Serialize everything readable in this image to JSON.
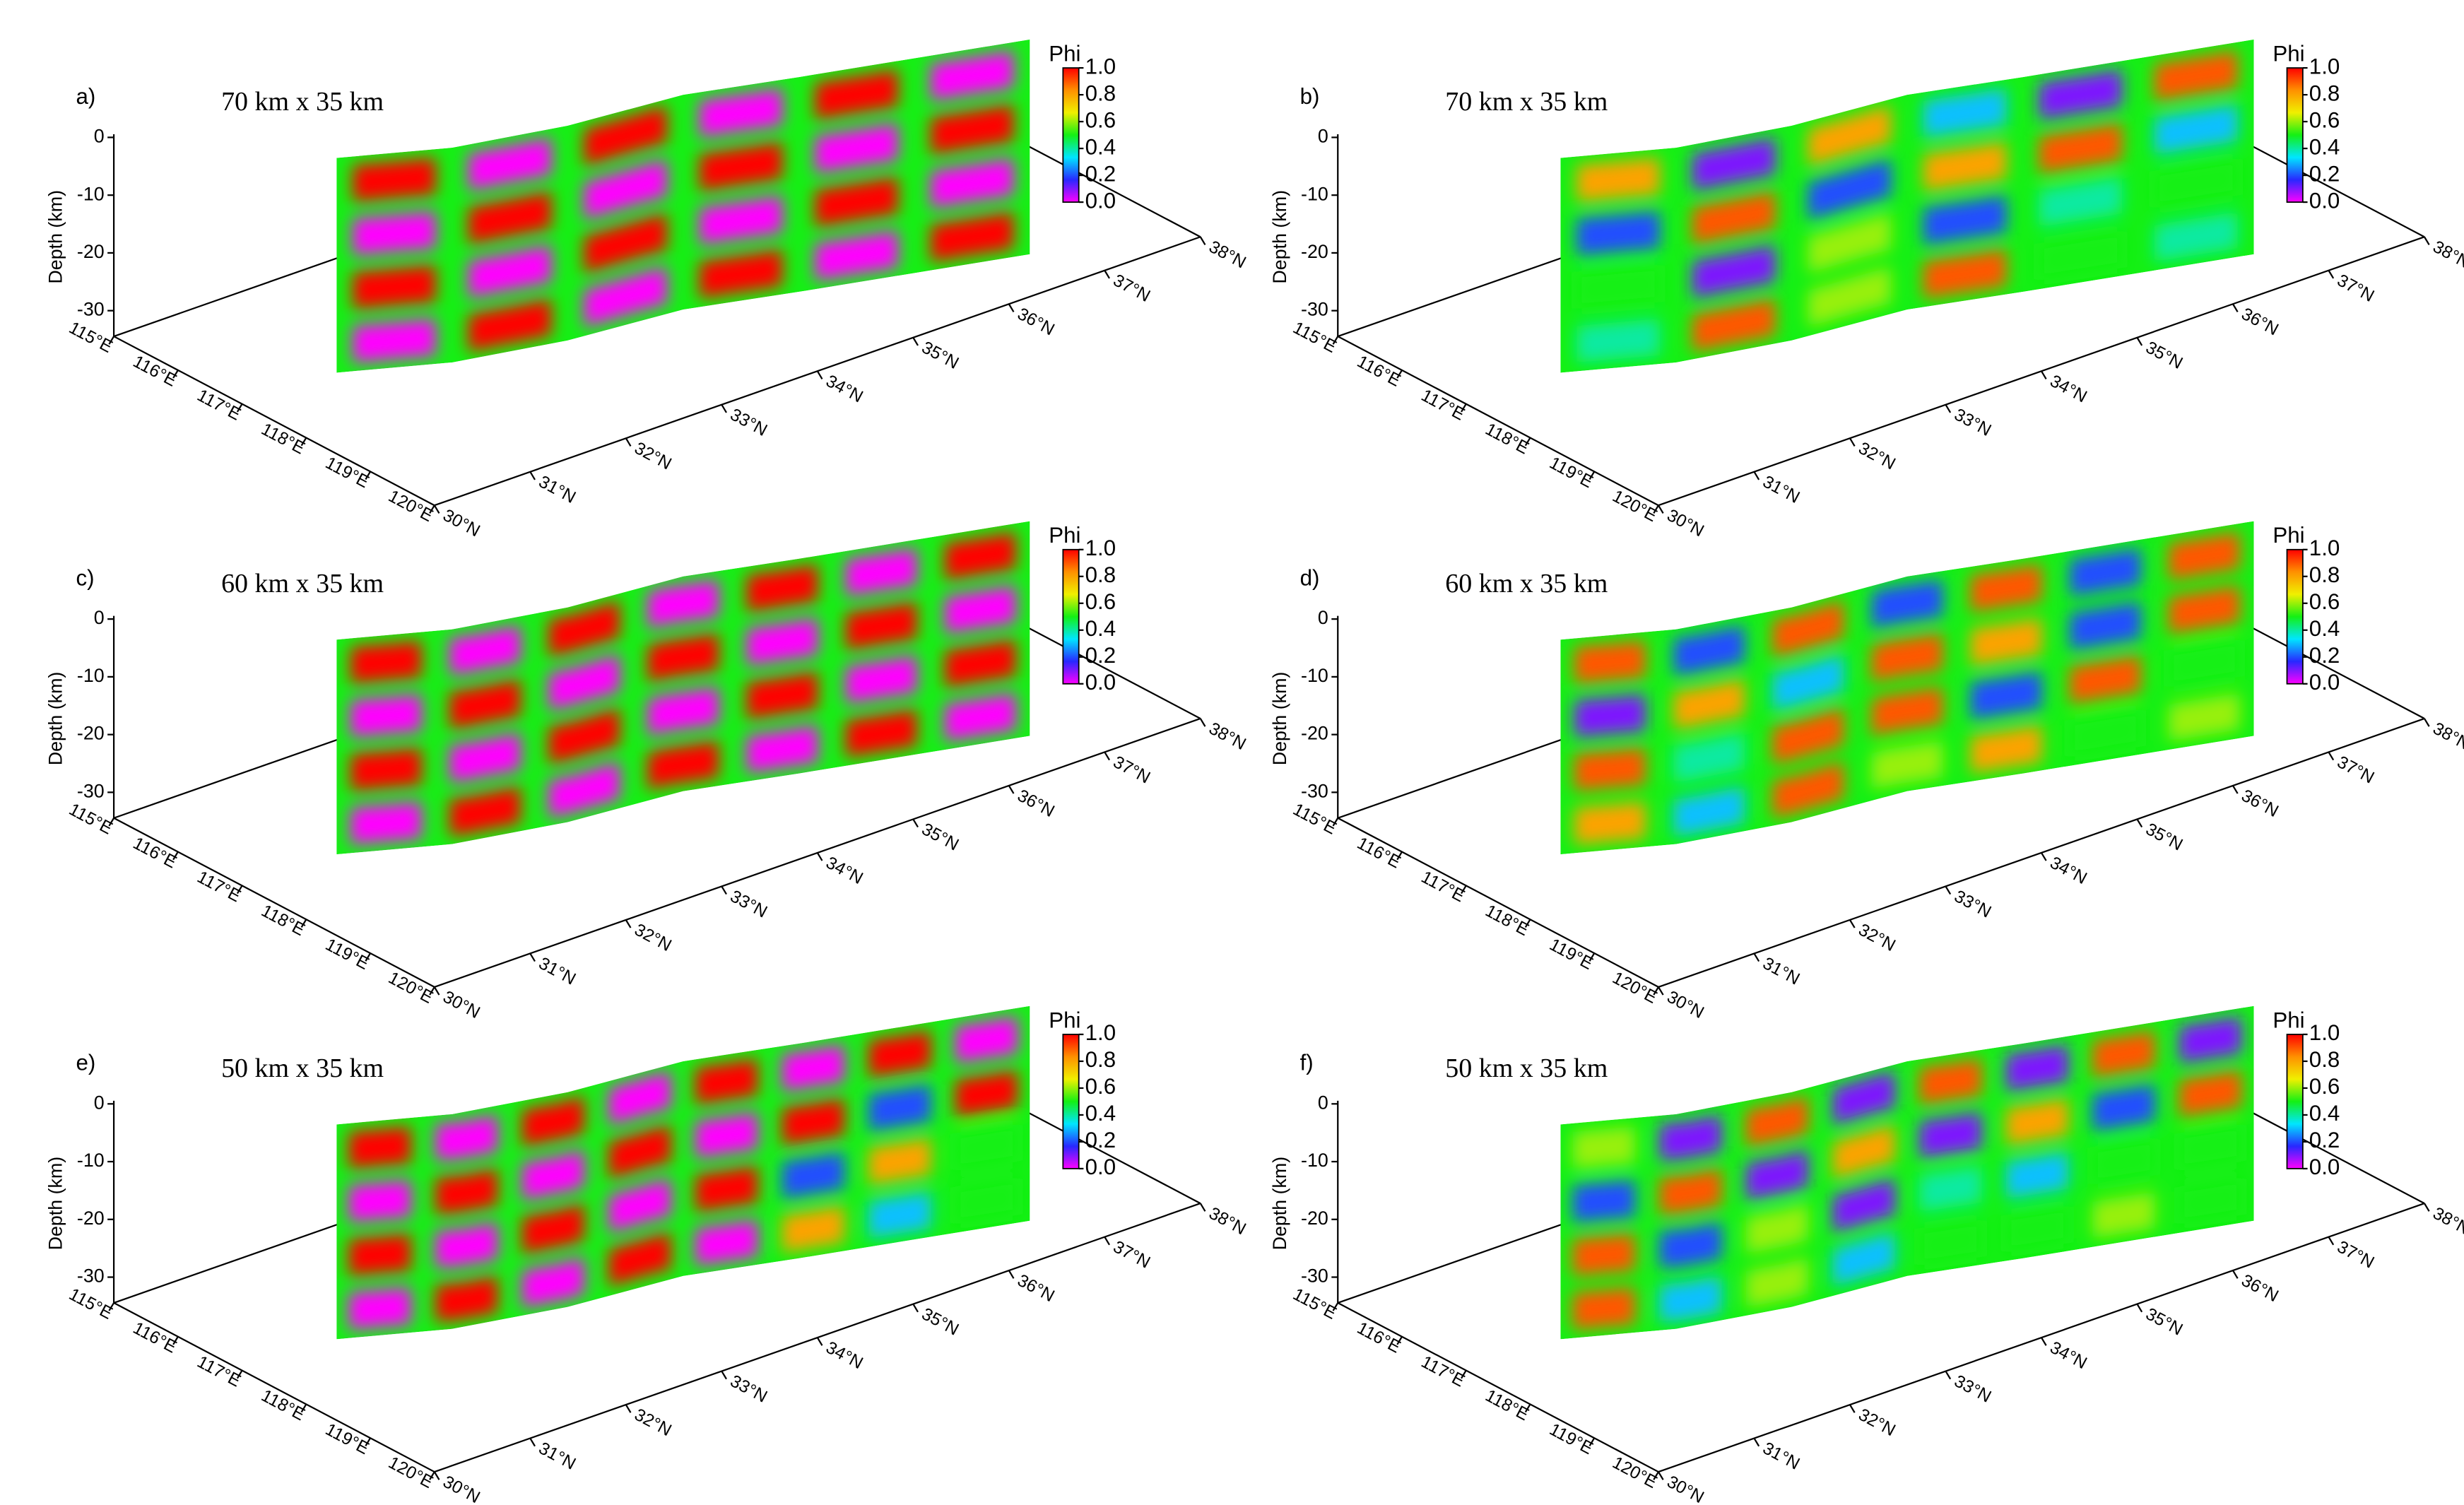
{
  "figure": {
    "depth_label": "Depth (km)",
    "ylim": [
      0,
      -35
    ],
    "yticks": [
      0,
      -10,
      -20,
      -30
    ],
    "lon_ticks": [
      "115°E",
      "116°E",
      "117°E",
      "118°E",
      "119°E",
      "120°E"
    ],
    "lat_ticks": [
      "30°N",
      "31°N",
      "32°N",
      "33°N",
      "34°N",
      "35°N",
      "36°N",
      "37°N",
      "38°N"
    ],
    "colorbar": {
      "label": "Phi",
      "lim": [
        0,
        1
      ],
      "ticks": [
        {
          "value": 1,
          "label": "1.0"
        },
        0.8,
        0.6,
        0.4,
        0.2,
        {
          "value": 0,
          "label": "0.0"
        }
      ],
      "colors": [
        "#ff00ff",
        "#2828ff",
        "#00e6ff",
        "#14f014",
        "#f0f000",
        "#ff9000",
        "#ff0000"
      ]
    }
  },
  "chart_data": [
    {
      "type": "heatmap",
      "panel": "a)",
      "title": "70 km x 35 km",
      "z": [
        [
          1,
          0,
          1,
          0,
          1,
          0
        ],
        [
          0,
          1,
          0,
          1,
          0,
          1
        ],
        [
          1,
          0,
          1,
          0,
          1,
          0
        ],
        [
          0,
          1,
          0,
          1,
          0,
          1
        ]
      ]
    },
    {
      "type": "heatmap",
      "panel": "b)",
      "title": "70 km x 35 km",
      "z": [
        [
          0.8,
          0.1,
          0.8,
          0.3,
          0.1,
          0.9
        ],
        [
          0.2,
          0.9,
          0.2,
          0.8,
          0.9,
          0.3
        ],
        [
          0.5,
          0.1,
          0.6,
          0.2,
          0.4,
          0.5
        ],
        [
          0.4,
          0.9,
          0.6,
          0.9,
          0.5,
          0.4
        ]
      ]
    },
    {
      "type": "heatmap",
      "panel": "c)",
      "title": "60 km x 35 km",
      "z": [
        [
          1,
          0,
          1,
          0,
          1,
          0,
          1
        ],
        [
          0,
          1,
          0,
          1,
          0,
          1,
          0
        ],
        [
          1,
          0,
          1,
          0,
          1,
          0,
          1
        ],
        [
          0,
          1,
          0,
          1,
          0,
          1,
          0
        ]
      ]
    },
    {
      "type": "heatmap",
      "panel": "d)",
      "title": "60 km x 35 km",
      "z": [
        [
          0.9,
          0.2,
          0.9,
          0.2,
          0.9,
          0.2,
          0.9
        ],
        [
          0.1,
          0.8,
          0.3,
          0.9,
          0.8,
          0.2,
          0.9
        ],
        [
          0.9,
          0.4,
          0.9,
          0.9,
          0.2,
          0.9,
          0.5
        ],
        [
          0.8,
          0.3,
          0.9,
          0.6,
          0.8,
          0.5,
          0.6
        ]
      ]
    },
    {
      "type": "heatmap",
      "panel": "e)",
      "title": "50 km x 35 km",
      "z": [
        [
          1,
          0,
          1,
          0,
          1,
          0,
          1,
          0
        ],
        [
          0,
          1,
          0,
          1,
          0,
          1,
          0.2,
          1
        ],
        [
          1,
          0,
          1,
          0,
          1,
          0.2,
          0.8,
          0.5
        ],
        [
          0,
          1,
          0,
          1,
          0,
          0.8,
          0.3,
          0.5
        ]
      ]
    },
    {
      "type": "heatmap",
      "panel": "f)",
      "title": "50 km x 35 km",
      "z": [
        [
          0.6,
          0.1,
          0.9,
          0.1,
          0.9,
          0.1,
          0.9,
          0.1
        ],
        [
          0.2,
          0.9,
          0.1,
          0.8,
          0.1,
          0.8,
          0.2,
          0.9
        ],
        [
          0.9,
          0.2,
          0.6,
          0.1,
          0.4,
          0.3,
          0.5,
          0.5
        ],
        [
          0.9,
          0.3,
          0.6,
          0.3,
          0.5,
          0.5,
          0.6,
          0.5
        ]
      ]
    }
  ]
}
